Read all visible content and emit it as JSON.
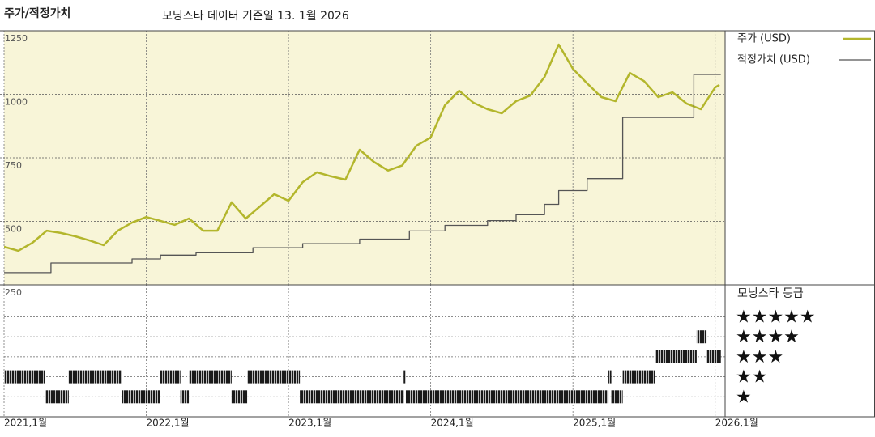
{
  "chart_data": [
    {
      "type": "line",
      "title": "주가/적정가치",
      "subtitle": "모닝스타 데이터 기준일 13. 1월 2026",
      "background": "#f8f5d8",
      "grid": true,
      "xlim": [
        2021,
        2026.07
      ],
      "xticks": [
        2021,
        2022,
        2023,
        2024,
        2025,
        2026
      ],
      "ylim": [
        250,
        1250
      ],
      "yticks": [
        250,
        500,
        750,
        1000,
        1250
      ],
      "series": [
        {
          "name": "주가 (USD)",
          "color": "#b3b62c",
          "width": 2.5,
          "x": [
            2021.0,
            2021.1,
            2021.2,
            2021.3,
            2021.4,
            2021.5,
            2021.6,
            2021.7,
            2021.8,
            2021.9,
            2022.0,
            2022.1,
            2022.2,
            2022.3,
            2022.4,
            2022.5,
            2022.6,
            2022.7,
            2022.8,
            2022.9,
            2023.0,
            2023.1,
            2023.2,
            2023.3,
            2023.4,
            2023.5,
            2023.6,
            2023.7,
            2023.8,
            2023.9,
            2024.0,
            2024.1,
            2024.2,
            2024.3,
            2024.4,
            2024.5,
            2024.6,
            2024.7,
            2024.8,
            2024.9,
            2025.0,
            2025.1,
            2025.2,
            2025.3,
            2025.4,
            2025.5,
            2025.6,
            2025.7,
            2025.8,
            2025.9,
            2026.0,
            2026.03
          ],
          "values": [
            400,
            384,
            416,
            463,
            454,
            441,
            425,
            406,
            463,
            495,
            517,
            502,
            486,
            511,
            463,
            463,
            575,
            511,
            559,
            607,
            581,
            654,
            693,
            677,
            664,
            782,
            734,
            700,
            720,
            798,
            830,
            957,
            1014,
            967,
            941,
            925,
            973,
            995,
            1068,
            1196,
            1100,
            1043,
            989,
            973,
            1084,
            1052,
            989,
            1008,
            963,
            941,
            1027,
            1037
          ]
        },
        {
          "name": "적정가치 (USD)",
          "color": "#555555",
          "width": 1.3,
          "x": [
            2021,
            2021.33,
            2021.33,
            2021.9,
            2021.9,
            2022.1,
            2022.1,
            2022.35,
            2022.35,
            2022.75,
            2022.75,
            2023.1,
            2023.1,
            2023.5,
            2023.5,
            2023.85,
            2023.85,
            2024.1,
            2024.1,
            2024.4,
            2024.4,
            2024.6,
            2024.6,
            2024.8,
            2024.8,
            2024.9,
            2024.9,
            2025.1,
            2025.1,
            2025.35,
            2025.35,
            2025.85,
            2025.85,
            2026.04
          ],
          "values": [
            298,
            298,
            336,
            336,
            352,
            352,
            367,
            367,
            376,
            376,
            396,
            396,
            412,
            412,
            430,
            430,
            462,
            462,
            484,
            484,
            503,
            503,
            526,
            526,
            567,
            567,
            621,
            621,
            668,
            668,
            909,
            909,
            1078,
            1078
          ]
        }
      ]
    },
    {
      "type": "timeline",
      "title": "모닝스타 등급",
      "color": "#1a1a1a",
      "grid": true,
      "xlim": [
        2021,
        2026.07
      ],
      "xticks": [
        {
          "value": 2021,
          "label": "2021,1월"
        },
        {
          "value": 2022,
          "label": "2022,1월"
        },
        {
          "value": 2023,
          "label": "2023,1월"
        },
        {
          "value": 2024,
          "label": "2024,1월"
        },
        {
          "value": 2025,
          "label": "2025,1월"
        },
        {
          "value": 2026,
          "label": "2026,1월"
        }
      ],
      "ylim": [
        0,
        6.6
      ],
      "yticks": [
        {
          "value": 5,
          "label": "★★★★★"
        },
        {
          "value": 4,
          "label": "★★★★"
        },
        {
          "value": 3,
          "label": "★★★"
        },
        {
          "value": 2,
          "label": "★★"
        },
        {
          "value": 1,
          "label": "★"
        }
      ],
      "start": [
        2021.0,
        2021.285,
        2021.455,
        2021.826,
        2022.094,
        2022.24,
        2022.3,
        2022.6,
        2022.71,
        2023.08,
        2023.81,
        2023.825,
        2025.25,
        2025.27,
        2025.35,
        2025.58,
        2025.87,
        2025.94
      ],
      "end": [
        2021.285,
        2021.455,
        2021.826,
        2022.094,
        2022.24,
        2022.3,
        2022.6,
        2022.71,
        2023.08,
        2023.81,
        2023.825,
        2025.25,
        2025.27,
        2025.35,
        2025.58,
        2025.87,
        2025.94,
        2026.04
      ],
      "values": [
        2,
        1,
        2,
        1,
        2,
        1,
        2,
        1,
        2,
        1,
        2,
        1,
        2,
        1,
        2,
        3,
        4,
        3
      ]
    }
  ]
}
